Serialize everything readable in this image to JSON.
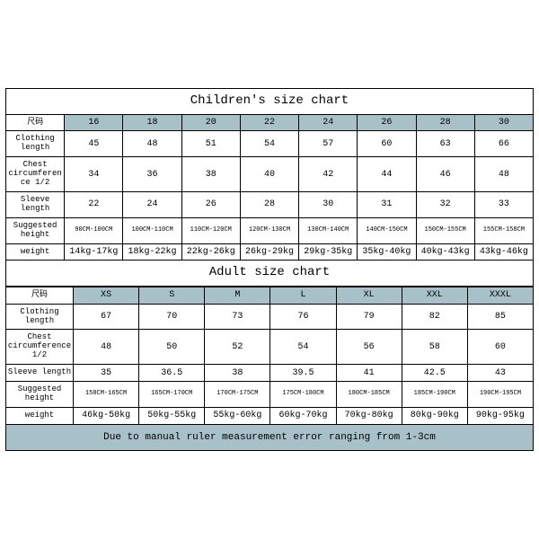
{
  "colors": {
    "header_bg": "#a8c0c8",
    "border": "#000000",
    "bg": "#ffffff"
  },
  "children": {
    "title": "Children's size chart",
    "size_label": "尺码",
    "sizes": [
      "16",
      "18",
      "20",
      "22",
      "24",
      "26",
      "28",
      "30"
    ],
    "rows": [
      {
        "label": "Clothing length",
        "values": [
          "45",
          "48",
          "51",
          "54",
          "57",
          "60",
          "63",
          "66"
        ]
      },
      {
        "label": "Chest circumference 1/2",
        "values": [
          "34",
          "36",
          "38",
          "40",
          "42",
          "44",
          "46",
          "48"
        ]
      },
      {
        "label": "Sleeve length",
        "values": [
          "22",
          "24",
          "26",
          "28",
          "30",
          "31",
          "32",
          "33"
        ]
      },
      {
        "label": "Suggested height",
        "values": [
          "90CM-100CM",
          "100CM-110CM",
          "110CM-120CM",
          "120CM-130CM",
          "130CM-140CM",
          "140CM-150CM",
          "150CM-155CM",
          "155CM-158CM"
        ],
        "small": true
      },
      {
        "label": "weight",
        "values": [
          "14kg-17kg",
          "18kg-22kg",
          "22kg-26kg",
          "26kg-29kg",
          "29kg-35kg",
          "35kg-40kg",
          "40kg-43kg",
          "43kg-46kg"
        ]
      }
    ]
  },
  "adult": {
    "title": "Adult size chart",
    "size_label": "尺码",
    "sizes": [
      "XS",
      "S",
      "M",
      "L",
      "XL",
      "XXL",
      "XXXL"
    ],
    "rows": [
      {
        "label": "Clothing length",
        "values": [
          "67",
          "70",
          "73",
          "76",
          "79",
          "82",
          "85"
        ]
      },
      {
        "label": "Chest circumference 1/2",
        "values": [
          "48",
          "50",
          "52",
          "54",
          "56",
          "58",
          "60"
        ]
      },
      {
        "label": "Sleeve length",
        "values": [
          "35",
          "36.5",
          "38",
          "39.5",
          "41",
          "42.5",
          "43"
        ]
      },
      {
        "label": "Suggested height",
        "values": [
          "158CM-165CM",
          "165CM-170CM",
          "170CM-175CM",
          "175CM-180CM",
          "180CM-185CM",
          "185CM-190CM",
          "190CM-195CM"
        ],
        "small": true
      },
      {
        "label": "weight",
        "values": [
          "46kg-50kg",
          "50kg-55kg",
          "55kg-60kg",
          "60kg-70kg",
          "70kg-80kg",
          "80kg-90kg",
          "90kg-95kg"
        ]
      }
    ]
  },
  "note": "Due to manual ruler measurement error ranging from 1-3cm"
}
